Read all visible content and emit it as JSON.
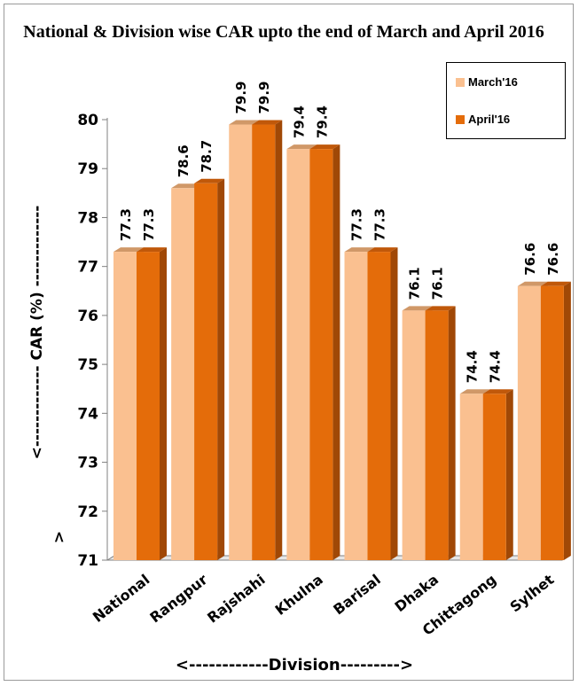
{
  "chart_data": {
    "type": "bar",
    "title": "National & Division wise CAR upto the end of March and April 2016",
    "categories": [
      "National",
      "Rangpur",
      "Rajshahi",
      "Khulna",
      "Barisal",
      "Dhaka",
      "Chittagong",
      "Sylhet"
    ],
    "series": [
      {
        "name": "March'16",
        "values": [
          77.3,
          78.6,
          79.9,
          79.4,
          77.3,
          76.1,
          74.4,
          76.6
        ],
        "labels": [
          "77.3",
          "78.6",
          "79.9",
          "79.4",
          "77.3",
          "76.1",
          "74.4",
          "76.6"
        ]
      },
      {
        "name": "April'16",
        "values": [
          77.3,
          78.7,
          79.9,
          79.4,
          77.3,
          76.1,
          74.4,
          76.6
        ],
        "labels": [
          "77.3",
          "78.7",
          "79.9",
          "79.4",
          "77.3",
          "76.1",
          "74.4",
          "76.6"
        ]
      }
    ],
    "ylabel": "<------------- CAR (%) -------------",
    "xlabel": "<------------Division--------->",
    "ylim": [
      71,
      80
    ],
    "yticks": [
      "71",
      "72",
      "73",
      "74",
      "75",
      "76",
      "77",
      "78",
      "79",
      "80"
    ],
    "grid": false,
    "legend": "top-right",
    "axis_marker": ">"
  },
  "colors": {
    "march_face": "#fac090",
    "march_side": "#e0a070",
    "march_top": "#d09868",
    "april_face": "#e46c0a",
    "april_side": "#a04806",
    "april_top": "#c0580a",
    "axis": "#808080"
  }
}
